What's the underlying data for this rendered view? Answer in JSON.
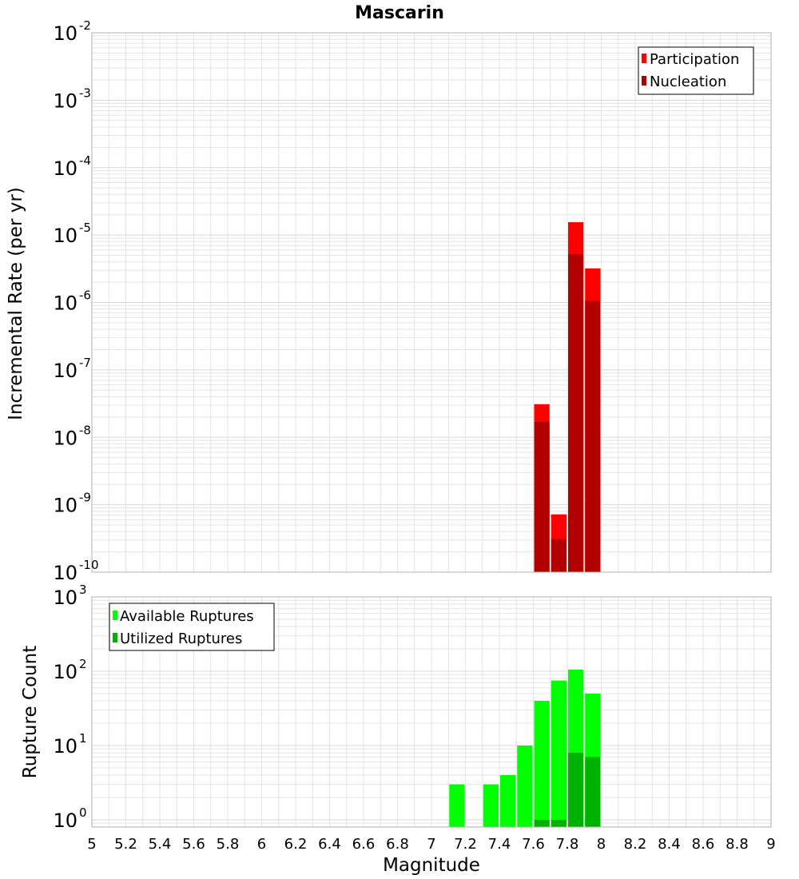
{
  "title": "Mascarin",
  "colors": {
    "participation": "#ff0000",
    "nucleation": "#b20000",
    "available": "#00ff00",
    "utilized": "#00b200",
    "grid": "#e4e4e4",
    "frame": "#b0b0b0"
  },
  "chart_data": [
    {
      "type": "bar",
      "name": "rate",
      "scale": "log",
      "ylabel": "Incremental Rate (per yr)",
      "ylim": [
        1e-10,
        0.01
      ],
      "yticks": [
        {
          "base": "10",
          "exp": "-10"
        },
        {
          "base": "10",
          "exp": "-9"
        },
        {
          "base": "10",
          "exp": "-8"
        },
        {
          "base": "10",
          "exp": "-7"
        },
        {
          "base": "10",
          "exp": "-6"
        },
        {
          "base": "10",
          "exp": "-5"
        },
        {
          "base": "10",
          "exp": "-4"
        },
        {
          "base": "10",
          "exp": "-3"
        },
        {
          "base": "10",
          "exp": "-2"
        }
      ],
      "legend_position": "top-right",
      "bin_width": 0.1,
      "series": [
        {
          "name": "Participation",
          "x": [
            7.65,
            7.75,
            7.85,
            7.95
          ],
          "values": [
            3.1e-08,
            7.2e-10,
            1.55e-05,
            3.2e-06
          ]
        },
        {
          "name": "Nucleation",
          "x": [
            7.65,
            7.75,
            7.85,
            7.95
          ],
          "values": [
            1.7e-08,
            3.1e-10,
            5.2e-06,
            1.05e-06
          ]
        }
      ]
    },
    {
      "type": "bar",
      "name": "count",
      "scale": "log",
      "ylabel": "Rupture Count",
      "ylim": [
        0.8,
        1000
      ],
      "yticks": [
        {
          "base": "10",
          "exp": "0",
          "value": 1
        },
        {
          "base": "10",
          "exp": "1",
          "value": 10
        },
        {
          "base": "10",
          "exp": "2",
          "value": 100
        },
        {
          "base": "10",
          "exp": "3",
          "value": 1000
        }
      ],
      "legend_position": "top-left",
      "bin_width": 0.1,
      "series": [
        {
          "name": "Available Ruptures",
          "x": [
            7.15,
            7.35,
            7.45,
            7.55,
            7.65,
            7.75,
            7.85,
            7.95
          ],
          "values": [
            3,
            3,
            4,
            10,
            40,
            75,
            105,
            50
          ]
        },
        {
          "name": "Utilized Ruptures",
          "x": [
            7.65,
            7.75,
            7.85,
            7.95
          ],
          "values": [
            1,
            1,
            8,
            7
          ]
        }
      ]
    }
  ],
  "x_axis": {
    "label": "Magnitude",
    "range": [
      5,
      9
    ],
    "ticks": [
      5,
      5.2,
      5.4,
      5.6,
      5.8,
      6,
      6.2,
      6.4,
      6.6,
      6.8,
      7,
      7.2,
      7.4,
      7.6,
      7.8,
      8,
      8.2,
      8.4,
      8.6,
      8.8,
      9
    ],
    "tick_labels": [
      "5",
      "5.2",
      "5.4",
      "5.6",
      "5.8",
      "6",
      "6.2",
      "6.4",
      "6.6",
      "6.8",
      "7",
      "7.2",
      "7.4",
      "7.6",
      "7.8",
      "8",
      "8.2",
      "8.4",
      "8.6",
      "8.8",
      "9"
    ]
  }
}
